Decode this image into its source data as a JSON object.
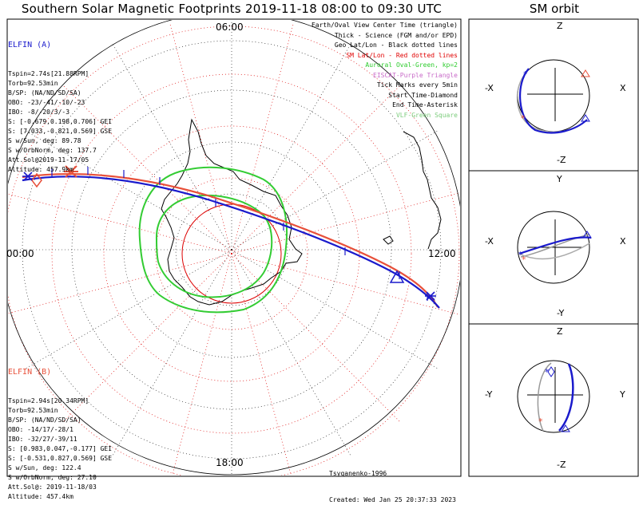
{
  "title": "Southern Solar Magnetic Footprints 2019-11-18 08:00 to 09:30 UTC",
  "orbit_title": "SM orbit",
  "mlt_labels": {
    "top": "06:00",
    "left": "00:00",
    "right": "12:00",
    "bottom": "18:00"
  },
  "elfin_a": {
    "name": "ELFIN (A)",
    "color": "#1a1acc",
    "lines": [
      "Tspin=2.74s[21.88RPM]",
      "Torb=92.53min",
      "B/SP: (NA/ND/SD/SA)",
      "OBO: -23/-41/-10/-23",
      "IBO: -8/-20/3/-3",
      "S: [-0.679,0.198,0.706] GEI",
      "S: [7.033,-0.821,0.569] GSE",
      "S w/Sun, deg: 89.78",
      "S w/OrbNorm, deg: 137.7",
      "Att.Sol@2019-11-17/05",
      "Altitude: 457.9km"
    ]
  },
  "elfin_b": {
    "name": "ELFIN (B)",
    "color": "#e8503a",
    "lines": [
      "Tspin=2.94s[20.34RPM]",
      "Torb=92.53min",
      "B/SP: (NA/ND/SD/SA)",
      "OBO: -14/17/-28/1",
      "IBO: -32/27/-39/11",
      "S: [0.983,0.047,-0.177] GEI",
      "S: [-0.531,0.827,0.569] GSE",
      "S w/Sun, deg: 122.4",
      "S w/OrbNorm, deg: 27.10",
      "Att.Sol@: 2019-11-18/03",
      "Altitude: 457.4km"
    ]
  },
  "legend": [
    {
      "text": "Earth/Oval View Center Time (triangle)",
      "color": "#000000"
    },
    {
      "text": "Thick - Science (FGM and/or EPD)",
      "color": "#000000"
    },
    {
      "text": "Geo Lat/Lon - Black dotted lines",
      "color": "#000000"
    },
    {
      "text": "SM Lat/Lon - Red dotted lines",
      "color": "#e00000"
    },
    {
      "text": "Auroral Oval-Green, kp=2",
      "color": "#2ecc2e"
    },
    {
      "text": "EISCAT-Purple Triangle",
      "color": "#c86ac8"
    },
    {
      "text": "Tick Marks every 5min",
      "color": "#000000"
    },
    {
      "text": "Start Time-Diamond",
      "color": "#000000"
    },
    {
      "text": "End Time-Asterisk",
      "color": "#000000"
    },
    {
      "text": "VLF-Green Square",
      "color": "#7ccc7c"
    }
  ],
  "credits": {
    "model": "Tsyganenko-1996",
    "created": "Created: Wed Jan 25 20:37:33 2023"
  },
  "orbit_panels": [
    {
      "top": "Z",
      "bottom": "-Z",
      "left": "-X",
      "right": "X"
    },
    {
      "top": "Y",
      "bottom": "-Y",
      "left": "-X",
      "right": "X"
    },
    {
      "top": "Z",
      "bottom": "-Z",
      "left": "-Y",
      "right": "Y"
    }
  ],
  "chart_data": {
    "type": "polar-map",
    "projection": "southern hemisphere, magnetic local time",
    "time_range": "2019-11-18 08:00 to 09:30 UTC",
    "series": [
      {
        "name": "ELFIN (A)",
        "color": "#1a1acc"
      },
      {
        "name": "ELFIN (B)",
        "color": "#e8503a"
      }
    ]
  }
}
